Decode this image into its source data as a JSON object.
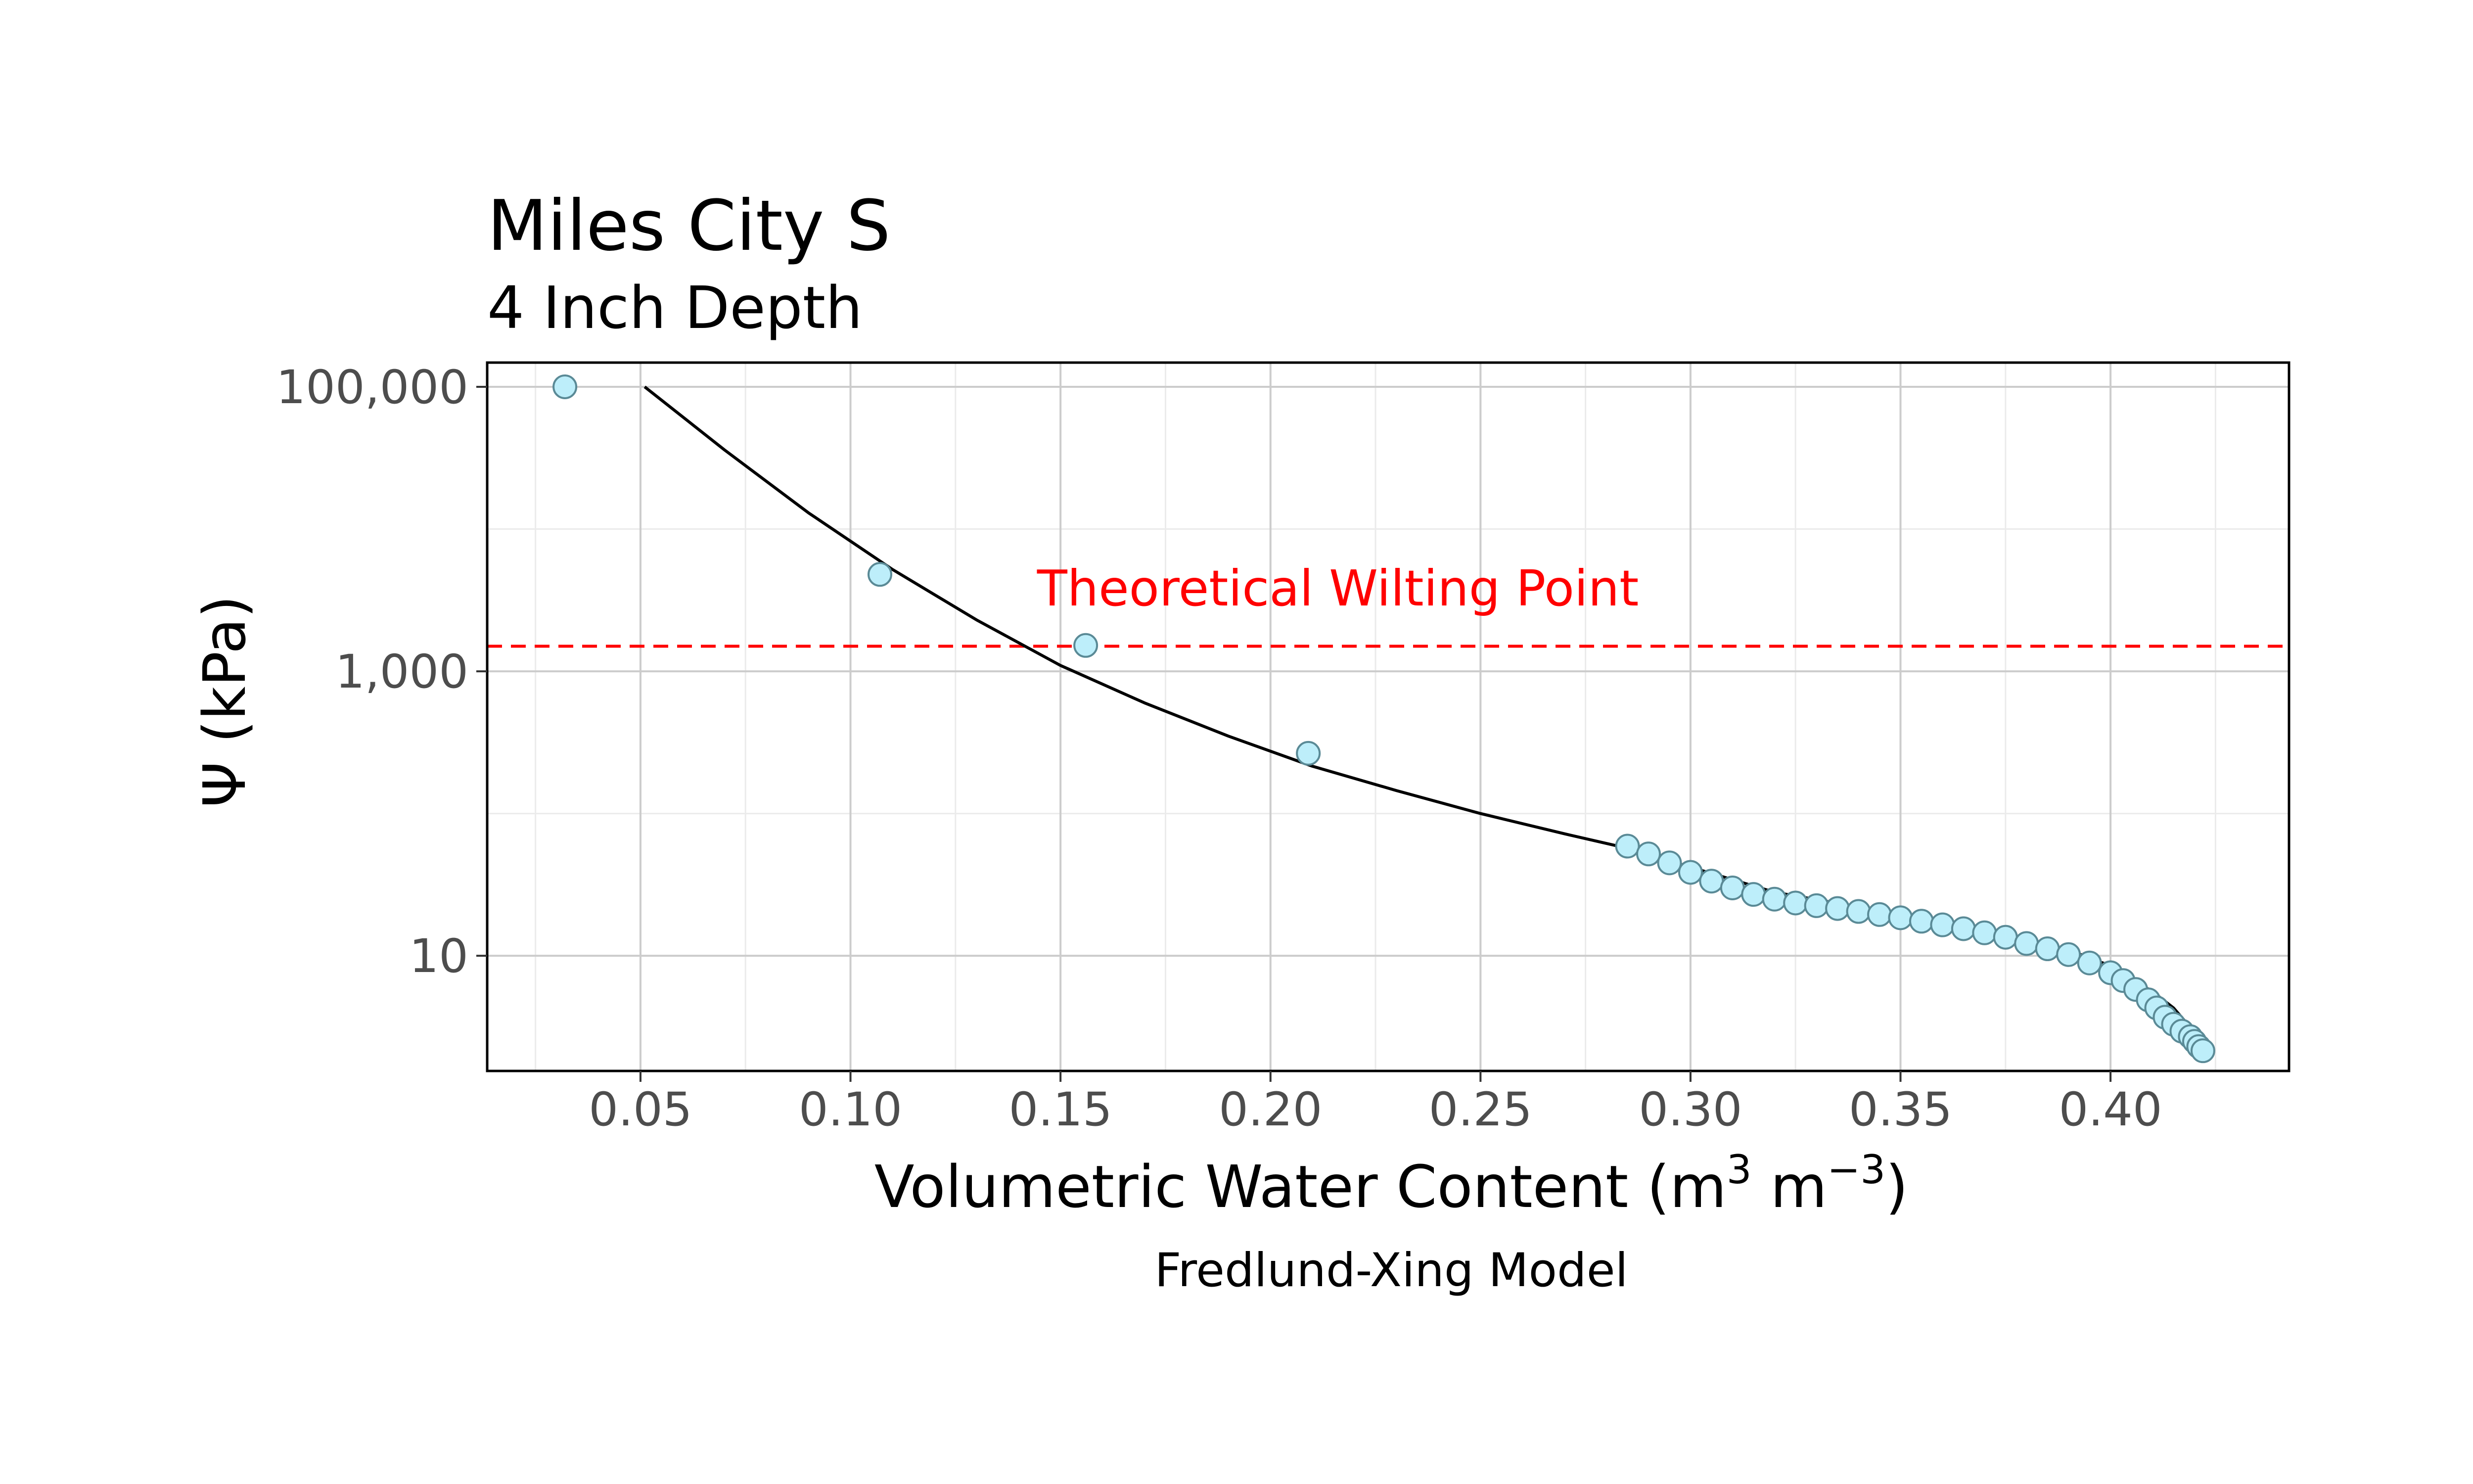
{
  "chart_data": {
    "type": "scatter",
    "title": "Miles City S",
    "subtitle": "4 Inch Depth",
    "xlabel_main": "Volumetric Water Content (m",
    "xlabel_sup1": "3",
    "xlabel_mid": " m",
    "xlabel_sup2": "−3",
    "xlabel_end": ")",
    "ylabel": "Ψ (kPa)",
    "caption": "Fredlund-Xing Model",
    "xlim": [
      0.0135,
      0.4425
    ],
    "ylim": [
      1.55,
      148000
    ],
    "y_scale": "log10",
    "x_ticks": [
      0.05,
      0.1,
      0.15,
      0.2,
      0.25,
      0.3,
      0.35,
      0.4
    ],
    "x_tick_labels": [
      "0.05",
      "0.10",
      "0.15",
      "0.20",
      "0.25",
      "0.30",
      "0.35",
      "0.40"
    ],
    "y_ticks": [
      10,
      1000,
      100000
    ],
    "y_tick_labels": [
      "10",
      "1,000",
      "100,000"
    ],
    "grid": true,
    "reference_line": {
      "y": 1500,
      "label": "Theoretical Wilting Point",
      "color": "#ff0000",
      "style": "dashed"
    },
    "point_fill": "#bdeefa",
    "point_stroke": "#5a8a96",
    "curve_color": "#000000",
    "series": [
      {
        "kind": "points",
        "x": [
          0.032,
          0.107,
          0.156,
          0.209,
          0.285,
          0.29,
          0.295,
          0.3,
          0.305,
          0.31,
          0.315,
          0.32,
          0.325,
          0.33,
          0.335,
          0.34,
          0.345,
          0.35,
          0.355,
          0.36,
          0.365,
          0.37,
          0.375,
          0.38,
          0.385,
          0.39,
          0.395,
          0.4,
          0.403,
          0.406,
          0.409,
          0.411,
          0.413,
          0.415,
          0.417,
          0.419,
          0.42,
          0.421,
          0.422
        ],
        "y": [
          100000,
          4800,
          1520,
          265,
          59,
          52,
          45,
          38.6,
          33.5,
          30,
          27,
          25,
          23.5,
          22.5,
          21.5,
          20.5,
          19.5,
          18.5,
          17.5,
          16.5,
          15.5,
          14.5,
          13.5,
          12.2,
          11.2,
          10.2,
          8.9,
          7.6,
          6.7,
          5.8,
          4.9,
          4.3,
          3.7,
          3.3,
          2.95,
          2.7,
          2.5,
          2.3,
          2.15
        ]
      },
      {
        "kind": "fitted_curve",
        "x": [
          0.051,
          0.07,
          0.09,
          0.11,
          0.13,
          0.15,
          0.17,
          0.19,
          0.21,
          0.23,
          0.25,
          0.27,
          0.285,
          0.3,
          0.32,
          0.34,
          0.36,
          0.38,
          0.39,
          0.4,
          0.41,
          0.415,
          0.42,
          0.422
        ],
        "y": [
          100000,
          36000,
          13000,
          5200,
          2300,
          1100,
          600,
          350,
          215,
          145,
          100,
          72,
          57,
          42,
          28,
          22,
          17.5,
          13,
          11,
          8.5,
          5.6,
          4.3,
          2.9,
          2.2
        ]
      }
    ]
  }
}
